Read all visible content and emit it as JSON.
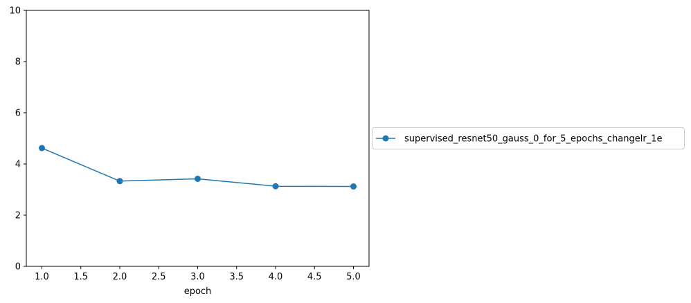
{
  "chart_data": {
    "type": "line",
    "x": [
      1.0,
      2.0,
      3.0,
      4.0,
      5.0
    ],
    "series": [
      {
        "name": "supervised_resnet50_gauss_0_for_5_epochs_changelr_1e",
        "values": [
          4.62,
          3.33,
          3.42,
          3.13,
          3.12
        ],
        "color": "#1f77b4",
        "marker": "circle"
      }
    ],
    "xlabel": "epoch",
    "ylabel": "",
    "title": "",
    "xlim": [
      0.8,
      5.2
    ],
    "ylim": [
      0,
      10
    ],
    "xticks": [
      "1.0",
      "1.5",
      "2.0",
      "2.5",
      "3.0",
      "3.5",
      "4.0",
      "4.5",
      "5.0"
    ],
    "yticks": [
      "0",
      "2",
      "4",
      "6",
      "8",
      "10"
    ],
    "grid": false,
    "legend_position": "outside-right"
  }
}
